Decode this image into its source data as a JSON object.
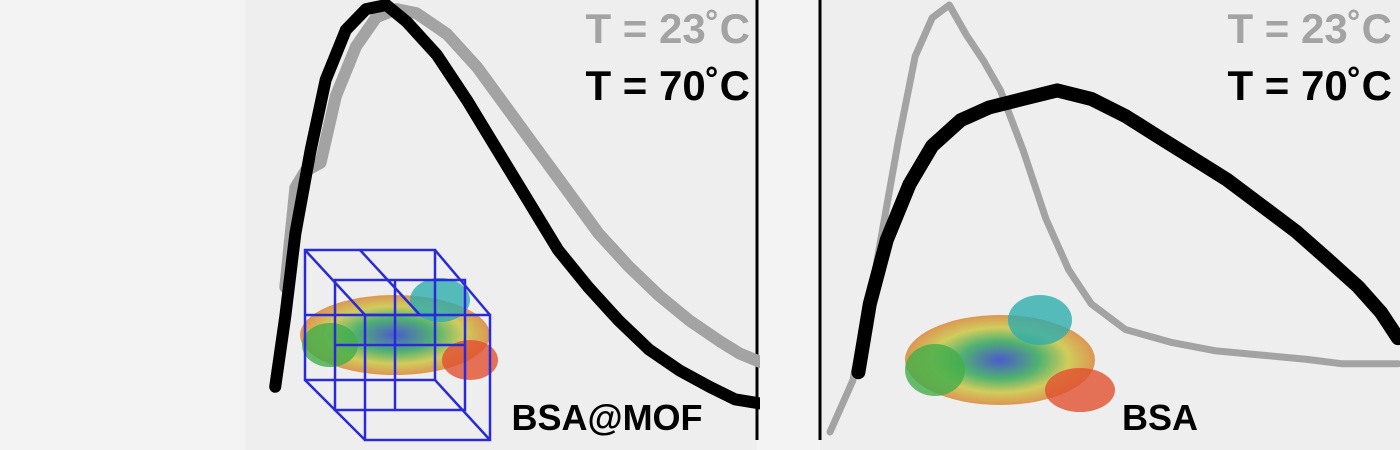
{
  "colors": {
    "t23": "#a3a3a3",
    "t70": "#000000",
    "cage": "#2a2ad8",
    "background": "#eeeeee"
  },
  "chart_data": [
    {
      "type": "line",
      "label": "BSA@MOF",
      "xlim": [
        0,
        1
      ],
      "ylim": [
        0,
        1
      ],
      "grid": false,
      "legend_position": "top-right",
      "series": [
        {
          "name": "T = 23˚C",
          "color": "#a3a3a3",
          "points": [
            [
              0.06,
              0.32
            ],
            [
              0.08,
              0.56
            ],
            [
              0.1,
              0.6
            ],
            [
              0.13,
              0.62
            ],
            [
              0.16,
              0.78
            ],
            [
              0.2,
              0.9
            ],
            [
              0.24,
              0.97
            ],
            [
              0.28,
              0.99
            ],
            [
              0.32,
              0.98
            ],
            [
              0.38,
              0.93
            ],
            [
              0.44,
              0.85
            ],
            [
              0.5,
              0.75
            ],
            [
              0.56,
              0.65
            ],
            [
              0.62,
              0.55
            ],
            [
              0.68,
              0.45
            ],
            [
              0.74,
              0.37
            ],
            [
              0.8,
              0.3
            ],
            [
              0.86,
              0.24
            ],
            [
              0.92,
              0.19
            ],
            [
              0.96,
              0.16
            ],
            [
              1.0,
              0.14
            ]
          ]
        },
        {
          "name": "T = 70˚C",
          "color": "#000000",
          "points": [
            [
              0.04,
              0.08
            ],
            [
              0.06,
              0.25
            ],
            [
              0.08,
              0.45
            ],
            [
              0.11,
              0.65
            ],
            [
              0.14,
              0.82
            ],
            [
              0.18,
              0.94
            ],
            [
              0.22,
              0.99
            ],
            [
              0.26,
              1.0
            ],
            [
              0.3,
              0.96
            ],
            [
              0.36,
              0.88
            ],
            [
              0.42,
              0.77
            ],
            [
              0.48,
              0.65
            ],
            [
              0.54,
              0.53
            ],
            [
              0.6,
              0.41
            ],
            [
              0.66,
              0.32
            ],
            [
              0.72,
              0.24
            ],
            [
              0.78,
              0.17
            ],
            [
              0.84,
              0.12
            ],
            [
              0.9,
              0.08
            ],
            [
              0.95,
              0.05
            ],
            [
              1.0,
              0.04
            ]
          ]
        }
      ]
    },
    {
      "type": "line",
      "label": "BSA",
      "xlim": [
        0,
        1
      ],
      "ylim": [
        0,
        1
      ],
      "grid": false,
      "legend_position": "top-right",
      "series": [
        {
          "name": "T = 23˚C",
          "color": "#a3a3a3",
          "points": [
            [
              0.0,
              0.0
            ],
            [
              0.04,
              0.12
            ],
            [
              0.08,
              0.38
            ],
            [
              0.12,
              0.68
            ],
            [
              0.15,
              0.88
            ],
            [
              0.18,
              0.97
            ],
            [
              0.21,
              1.0
            ],
            [
              0.24,
              0.93
            ],
            [
              0.27,
              0.87
            ],
            [
              0.3,
              0.8
            ],
            [
              0.34,
              0.66
            ],
            [
              0.38,
              0.5
            ],
            [
              0.42,
              0.38
            ],
            [
              0.46,
              0.3
            ],
            [
              0.52,
              0.24
            ],
            [
              0.6,
              0.21
            ],
            [
              0.68,
              0.19
            ],
            [
              0.76,
              0.18
            ],
            [
              0.84,
              0.17
            ],
            [
              0.9,
              0.16
            ],
            [
              0.95,
              0.16
            ],
            [
              1.0,
              0.16
            ]
          ]
        },
        {
          "name": "T = 70˚C",
          "color": "#000000",
          "points": [
            [
              0.05,
              0.14
            ],
            [
              0.07,
              0.3
            ],
            [
              0.1,
              0.45
            ],
            [
              0.14,
              0.58
            ],
            [
              0.18,
              0.67
            ],
            [
              0.23,
              0.73
            ],
            [
              0.28,
              0.76
            ],
            [
              0.34,
              0.78
            ],
            [
              0.4,
              0.8
            ],
            [
              0.46,
              0.78
            ],
            [
              0.52,
              0.74
            ],
            [
              0.58,
              0.69
            ],
            [
              0.64,
              0.64
            ],
            [
              0.7,
              0.59
            ],
            [
              0.76,
              0.53
            ],
            [
              0.82,
              0.47
            ],
            [
              0.88,
              0.4
            ],
            [
              0.93,
              0.34
            ],
            [
              0.97,
              0.28
            ],
            [
              1.0,
              0.22
            ]
          ]
        }
      ]
    }
  ]
}
